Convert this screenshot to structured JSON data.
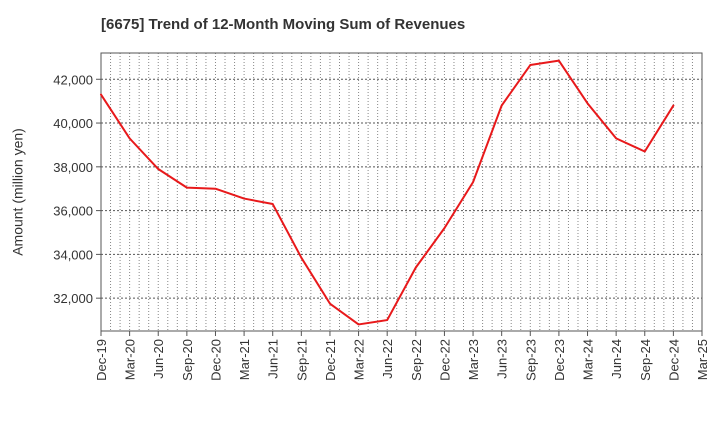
{
  "chart_data": {
    "type": "line",
    "title": "[6675]  Trend of 12-Month Moving Sum of Revenues",
    "xlabel": "",
    "ylabel": "Amount (million yen)",
    "categories": [
      "Dec-19",
      "Mar-20",
      "Jun-20",
      "Sep-20",
      "Dec-20",
      "Mar-21",
      "Jun-21",
      "Sep-21",
      "Dec-21",
      "Mar-22",
      "Jun-22",
      "Sep-22",
      "Dec-22",
      "Mar-23",
      "Jun-23",
      "Sep-23",
      "Dec-23",
      "Mar-24",
      "Jun-24",
      "Sep-24",
      "Dec-24",
      "Mar-25"
    ],
    "series": [
      {
        "name": "",
        "color": "#e8191b",
        "values": [
          41300,
          39300,
          37900,
          37050,
          37000,
          36550,
          36300,
          33850,
          31750,
          30800,
          31000,
          33400,
          35200,
          37300,
          40800,
          42650,
          42850,
          40900,
          39300,
          38700,
          40800,
          null
        ]
      }
    ],
    "ylim": [
      30500,
      43200
    ],
    "yticks": [
      32000,
      34000,
      36000,
      38000,
      40000,
      42000
    ],
    "ytick_labels": [
      "32,000",
      "34,000",
      "36,000",
      "38,000",
      "40,000",
      "42,000"
    ],
    "grid": true,
    "legend": "none"
  }
}
